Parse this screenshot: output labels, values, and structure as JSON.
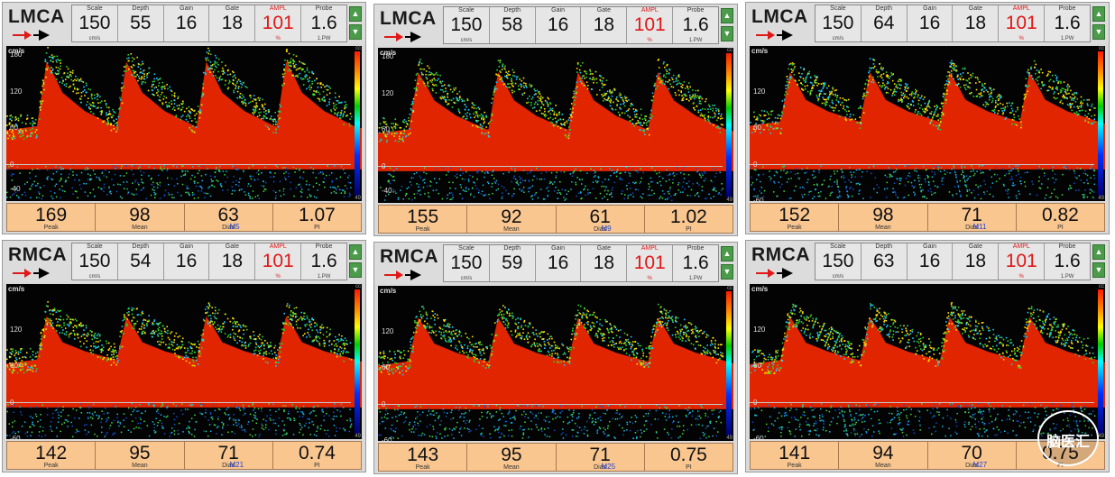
{
  "param_labels": {
    "scale": "Scale",
    "depth": "Depth",
    "gain": "Gain",
    "gate": "Gate",
    "ampl": "AMPL",
    "probe": "Probe",
    "scale_unit": "cm/s",
    "ampl_unit": "%",
    "probe_unit": "1.PW"
  },
  "result_labels": {
    "peak": "Peak",
    "mean": "Mean",
    "dias": "Dias",
    "pi": "PI"
  },
  "axis_unit": "cm/s",
  "colorbar_top": "cc",
  "colorbar_bottom": "49",
  "colors": {
    "accent_red": "#e01818",
    "result_bg": "#f9c690",
    "button_green": "#4b9b4b",
    "marker_blue": "#1f3fd0"
  },
  "icons": [
    "probe-arrow-icon",
    "arrow-up-icon",
    "arrow-down-icon"
  ],
  "panels": [
    {
      "vessel": "LMCA",
      "params": {
        "scale": "150",
        "depth": "55",
        "gain": "16",
        "gate": "18",
        "ampl": "101",
        "probe": "1.6"
      },
      "results": {
        "peak": "169",
        "mean": "98",
        "dias": "63",
        "pi": "1.07"
      },
      "marker": "M5",
      "ticks": [
        "180",
        "120",
        "60",
        "0",
        "-40"
      ]
    },
    {
      "vessel": "LMCA",
      "params": {
        "scale": "150",
        "depth": "58",
        "gain": "16",
        "gate": "18",
        "ampl": "101",
        "probe": "1.6"
      },
      "results": {
        "peak": "155",
        "mean": "92",
        "dias": "61",
        "pi": "1.02"
      },
      "marker": "M9",
      "ticks": [
        "180",
        "120",
        "60",
        "0",
        "-40"
      ]
    },
    {
      "vessel": "LMCA",
      "params": {
        "scale": "150",
        "depth": "64",
        "gain": "16",
        "gate": "18",
        "ampl": "101",
        "probe": "1.6"
      },
      "results": {
        "peak": "152",
        "mean": "98",
        "dias": "71",
        "pi": "0.82"
      },
      "marker": "M11",
      "ticks": [
        "120",
        "60",
        "0",
        "-60"
      ]
    },
    {
      "vessel": "RMCA",
      "params": {
        "scale": "150",
        "depth": "54",
        "gain": "16",
        "gate": "18",
        "ampl": "101",
        "probe": "1.6"
      },
      "results": {
        "peak": "142",
        "mean": "95",
        "dias": "71",
        "pi": "0.74"
      },
      "marker": "M21",
      "ticks": [
        "120",
        "60",
        "0",
        "-60"
      ]
    },
    {
      "vessel": "RMCA",
      "params": {
        "scale": "150",
        "depth": "59",
        "gain": "16",
        "gate": "18",
        "ampl": "101",
        "probe": "1.6"
      },
      "results": {
        "peak": "143",
        "mean": "95",
        "dias": "71",
        "pi": "0.75"
      },
      "marker": "M25",
      "ticks": [
        "120",
        "60",
        "0",
        "-60"
      ]
    },
    {
      "vessel": "RMCA",
      "params": {
        "scale": "150",
        "depth": "63",
        "gain": "16",
        "gate": "18",
        "ampl": "101",
        "probe": "1.6"
      },
      "results": {
        "peak": "141",
        "mean": "94",
        "dias": "70",
        "pi": "0.75"
      },
      "marker": "M27",
      "ticks": [
        "120",
        "60",
        "0",
        "-60"
      ]
    }
  ],
  "watermark": "脑医汇"
}
